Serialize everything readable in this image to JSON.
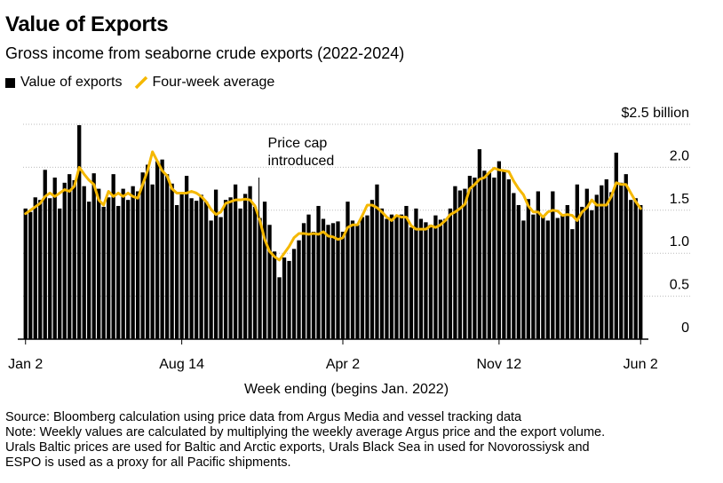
{
  "header": {
    "title": "Value of Exports",
    "subtitle": "Gross income from seaborne crude exports (2022-2024)"
  },
  "legend": {
    "bars_label": "Value of exports",
    "line_label": "Four-week average"
  },
  "colors": {
    "bars": "#000000",
    "line": "#f5b800",
    "axis": "#000000"
  },
  "chart_data": {
    "type": "bar",
    "title": "Value of Exports",
    "subtitle": "Gross income from seaborne crude exports (2022-2024)",
    "xlabel": "Week ending (begins Jan. 2022)",
    "ylabel": "$ billion",
    "ylim": [
      0,
      2.5
    ],
    "y_ticks": [
      {
        "value": 2.5,
        "label": "$2.5 billion"
      },
      {
        "value": 2.0,
        "label": "2.0"
      },
      {
        "value": 1.5,
        "label": "1.5"
      },
      {
        "value": 1.0,
        "label": "1.0"
      },
      {
        "value": 0.5,
        "label": "0.5"
      },
      {
        "value": 0,
        "label": "0"
      }
    ],
    "x_ticks": [
      {
        "index": 0,
        "label": "Jan 2"
      },
      {
        "index": 32,
        "label": "Aug 14"
      },
      {
        "index": 65,
        "label": "Apr 2"
      },
      {
        "index": 97,
        "label": "Nov 12"
      },
      {
        "index": 126,
        "label": "Jun 2"
      }
    ],
    "annotation": {
      "index": 48,
      "lines": [
        "Price cap",
        "introduced"
      ]
    },
    "series": [
      {
        "name": "Value of exports",
        "kind": "bar",
        "values": [
          1.52,
          1.48,
          1.65,
          1.62,
          1.97,
          1.64,
          1.88,
          1.52,
          1.82,
          1.92,
          1.85,
          2.49,
          1.78,
          1.6,
          1.93,
          1.75,
          1.54,
          1.65,
          1.92,
          1.55,
          1.75,
          1.62,
          1.78,
          1.72,
          1.94,
          2.03,
          1.8,
          2.07,
          2.09,
          1.92,
          1.81,
          1.56,
          1.69,
          1.9,
          1.64,
          1.61,
          1.68,
          1.6,
          1.38,
          1.74,
          1.42,
          1.62,
          1.65,
          1.8,
          1.52,
          1.69,
          1.78,
          1.54,
          1.41,
          1.6,
          1.33,
          1.02,
          0.72,
          0.95,
          0.91,
          1.05,
          1.15,
          1.35,
          1.45,
          1.25,
          1.55,
          1.4,
          1.33,
          1.35,
          1.37,
          1.25,
          1.6,
          1.38,
          1.33,
          1.42,
          1.44,
          1.62,
          1.8,
          1.52,
          1.4,
          1.45,
          1.42,
          1.45,
          1.55,
          1.3,
          1.52,
          1.4,
          1.36,
          1.33,
          1.44,
          1.39,
          1.4,
          1.52,
          1.78,
          1.73,
          1.75,
          1.9,
          1.88,
          2.21,
          1.96,
          1.94,
          1.88,
          2.07,
          1.95,
          1.86,
          1.7,
          1.56,
          1.38,
          1.63,
          1.45,
          1.72,
          1.43,
          1.38,
          1.72,
          1.41,
          1.45,
          1.56,
          1.28,
          1.8,
          1.54,
          1.75,
          1.5,
          1.68,
          1.79,
          1.86,
          1.71,
          2.17,
          1.82,
          1.92,
          1.62,
          1.64,
          1.56
        ]
      },
      {
        "name": "Four-week average",
        "kind": "line",
        "values": [
          1.46,
          1.5,
          1.54,
          1.58,
          1.66,
          1.7,
          1.66,
          1.7,
          1.74,
          1.72,
          1.78,
          2.0,
          1.92,
          1.85,
          1.8,
          1.62,
          1.56,
          1.72,
          1.66,
          1.7,
          1.66,
          1.7,
          1.66,
          1.64,
          1.8,
          1.96,
          2.18,
          2.07,
          1.96,
          1.9,
          1.75,
          1.7,
          1.7,
          1.7,
          1.72,
          1.7,
          1.66,
          1.6,
          1.51,
          1.45,
          1.48,
          1.58,
          1.6,
          1.62,
          1.62,
          1.63,
          1.62,
          1.55,
          1.38,
          1.16,
          1.02,
          0.96,
          0.92,
          1.0,
          1.08,
          1.18,
          1.23,
          1.23,
          1.22,
          1.23,
          1.22,
          1.25,
          1.2,
          1.19,
          1.16,
          1.18,
          1.3,
          1.33,
          1.33,
          1.44,
          1.56,
          1.56,
          1.53,
          1.48,
          1.42,
          1.38,
          1.44,
          1.42,
          1.42,
          1.32,
          1.28,
          1.28,
          1.28,
          1.32,
          1.3,
          1.33,
          1.38,
          1.45,
          1.48,
          1.52,
          1.57,
          1.75,
          1.8,
          1.86,
          1.88,
          1.94,
          1.99,
          1.97,
          1.96,
          1.95,
          1.84,
          1.75,
          1.68,
          1.55,
          1.48,
          1.48,
          1.42,
          1.48,
          1.5,
          1.49,
          1.44,
          1.45,
          1.44,
          1.38,
          1.48,
          1.53,
          1.62,
          1.56,
          1.56,
          1.56,
          1.66,
          1.82,
          1.8,
          1.8,
          1.7,
          1.6,
          1.52
        ]
      }
    ]
  },
  "xaxis": {
    "label": "Week ending (begins Jan. 2022)"
  },
  "footer": {
    "lines": [
      "Source: Bloomberg calculation using price data from Argus Media and vessel tracking data",
      "Note: Weekly values are calculated by multiplying the weekly average Argus price and the export volume.",
      "Urals Baltic prices are used for Baltic and Arctic exports, Urals Black Sea in used for Novorossiysk and",
      "ESPO is used as a proxy for all Pacific shipments."
    ]
  }
}
